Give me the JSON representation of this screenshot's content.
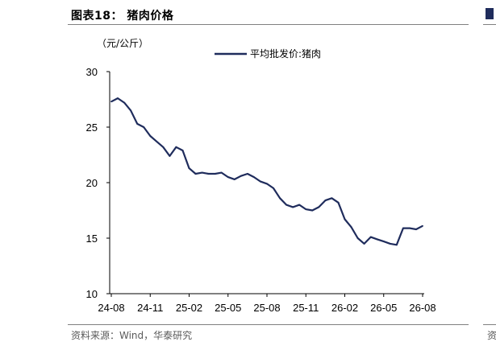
{
  "figure": {
    "title": "图表18：  猪肉价格",
    "source": "资料来源：Wind，华泰研究",
    "right_edge_source": "资"
  },
  "chart_data": {
    "type": "line",
    "title": "",
    "unit_label": "（元/公斤）",
    "xlabel": "",
    "ylabel": "",
    "ylim": [
      10,
      30
    ],
    "yticks": [
      "10",
      "15",
      "20",
      "25",
      "30"
    ],
    "xticks": [
      "24-08",
      "24-11",
      "25-02",
      "25-05",
      "25-08",
      "25-11",
      "26-02",
      "26-05",
      "26-08"
    ],
    "legend_position": "top-center",
    "grid": false,
    "series": [
      {
        "name": "平均批发价:猪肉",
        "color": "#1f2c5c",
        "x": [
          "24-08",
          "24-08",
          "24-09",
          "24-09",
          "24-10",
          "24-10",
          "24-11",
          "24-11",
          "24-12",
          "24-12",
          "25-01",
          "25-01",
          "25-02",
          "25-02",
          "25-03",
          "25-03",
          "25-04",
          "25-04",
          "25-05",
          "25-05",
          "25-06",
          "25-06",
          "25-07",
          "25-07",
          "25-08",
          "25-08",
          "25-09",
          "25-09",
          "25-10",
          "25-10",
          "25-11",
          "25-11",
          "25-12",
          "25-12",
          "26-01",
          "26-01",
          "26-02",
          "26-02",
          "26-03",
          "26-03",
          "26-04",
          "26-04",
          "26-05",
          "26-05",
          "26-06",
          "26-06",
          "26-07",
          "26-07",
          "26-08"
        ],
        "values": [
          27.3,
          27.6,
          27.2,
          26.5,
          25.3,
          25.0,
          24.2,
          23.7,
          23.2,
          22.4,
          23.2,
          22.9,
          21.3,
          20.8,
          20.9,
          20.8,
          20.8,
          20.9,
          20.5,
          20.3,
          20.6,
          20.8,
          20.5,
          20.1,
          19.9,
          19.5,
          18.6,
          18.0,
          17.8,
          18.0,
          17.6,
          17.5,
          17.8,
          18.4,
          18.6,
          18.2,
          16.7,
          16.0,
          15.0,
          14.5,
          15.1,
          14.9,
          14.7,
          14.5,
          14.4,
          15.9,
          15.9,
          15.8,
          16.1
        ]
      }
    ]
  }
}
